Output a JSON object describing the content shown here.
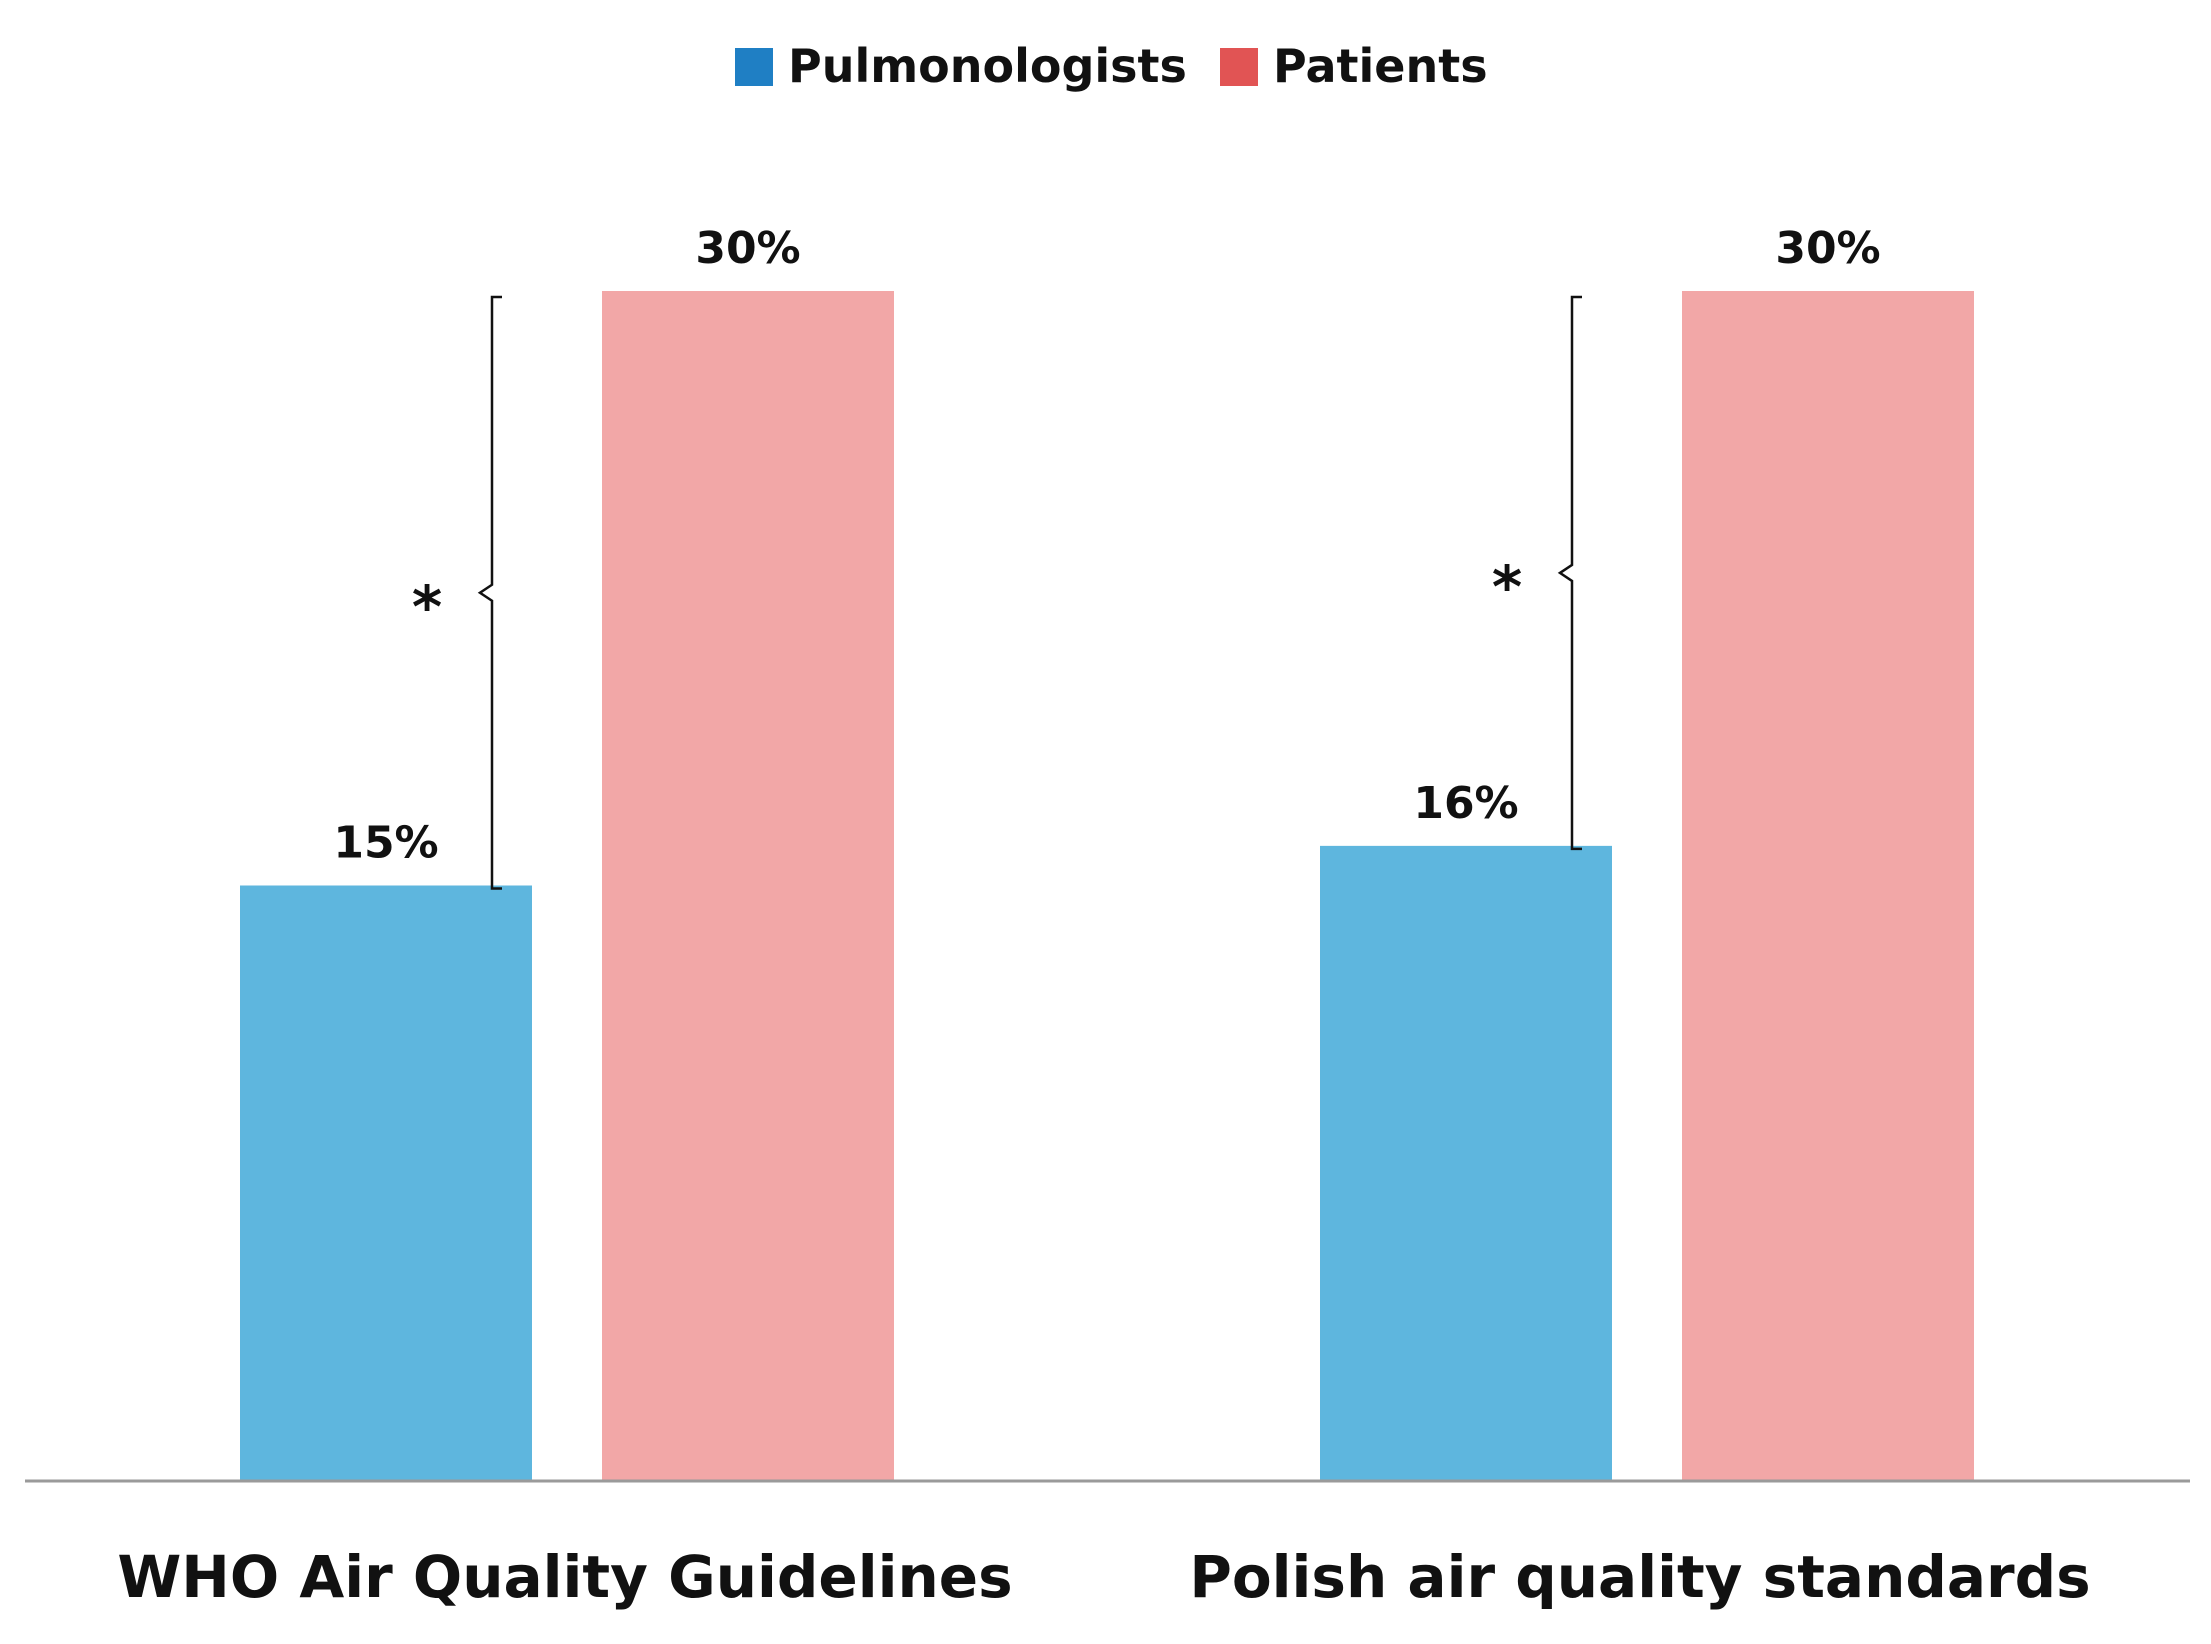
{
  "chart_data": {
    "type": "bar",
    "categories": [
      "WHO Air Quality Guidelines",
      "Polish air quality standards"
    ],
    "series": [
      {
        "name": "Pulmonologists",
        "values": [
          15,
          16
        ],
        "value_labels": [
          "15%",
          "16%"
        ],
        "color": "#5eb6de",
        "legend_color": "#1f7fc4"
      },
      {
        "name": "Patients",
        "values": [
          30,
          30
        ],
        "value_labels": [
          "30%",
          "30%"
        ],
        "color": "#f2a7a7",
        "legend_color": "#e15454"
      }
    ],
    "ylim": [
      0,
      32
    ],
    "grid": false,
    "legend_position": "top-center",
    "significance": [
      {
        "category": "WHO Air Quality Guidelines",
        "label": "*"
      },
      {
        "category": "Polish air quality standards",
        "label": "*"
      }
    ]
  }
}
